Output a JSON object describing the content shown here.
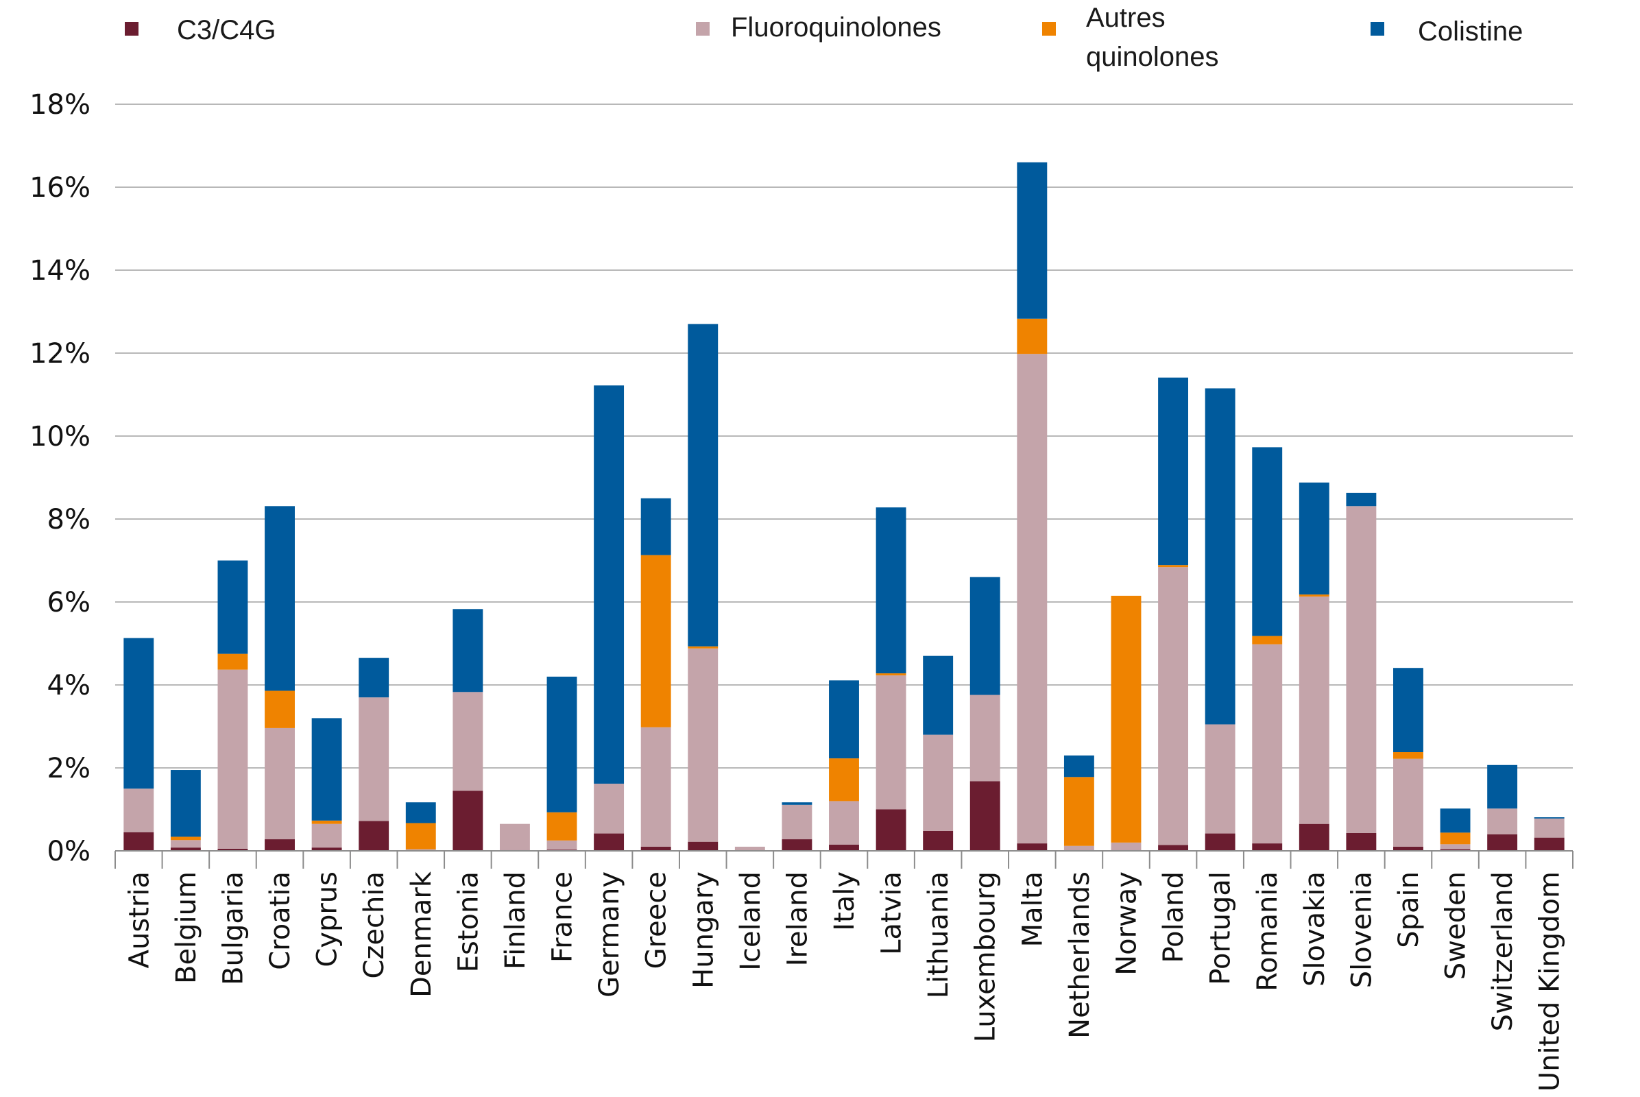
{
  "chart_data": {
    "type": "bar",
    "stacked": true,
    "title": "",
    "xlabel": "",
    "ylabel": "",
    "ylim": [
      0,
      18
    ],
    "y_ticks": [
      "0%",
      "2%",
      "4%",
      "6%",
      "8%",
      "10%",
      "12%",
      "14%",
      "16%",
      "18%"
    ],
    "grid": "horizontal",
    "legend_position": "top",
    "categories": [
      "Austria",
      "Belgium",
      "Bulgaria",
      "Croatia",
      "Cyprus",
      "Czechia",
      "Denmark",
      "Estonia",
      "Finland",
      "France",
      "Germany",
      "Greece",
      "Hungary",
      "Iceland",
      "Ireland",
      "Italy",
      "Latvia",
      "Lithuania",
      "Luxembourg",
      "Malta",
      "Netherlands",
      "Norway",
      "Poland",
      "Portugal",
      "Romania",
      "Slovakia",
      "Slovenia",
      "Spain",
      "Sweden",
      "Switzerland",
      "United Kingdom"
    ],
    "series": [
      {
        "name": "C3/C4G",
        "color": "#6b1d30",
        "values": [
          0.45,
          0.08,
          0.05,
          0.28,
          0.08,
          0.72,
          0.02,
          1.45,
          0.02,
          0.03,
          0.42,
          0.1,
          0.22,
          0.02,
          0.28,
          0.15,
          1.0,
          0.48,
          1.68,
          0.18,
          0.02,
          0.02,
          0.14,
          0.42,
          0.18,
          0.65,
          0.43,
          0.1,
          0.04,
          0.4,
          0.32
        ]
      },
      {
        "name": "Fluoroquinolones",
        "color": "#c4a4aa",
        "values": [
          1.05,
          0.18,
          4.32,
          2.68,
          0.57,
          2.98,
          0.02,
          2.38,
          0.63,
          0.22,
          1.2,
          2.88,
          4.66,
          0.08,
          0.83,
          1.05,
          3.23,
          2.32,
          2.08,
          11.8,
          0.1,
          0.18,
          6.7,
          2.63,
          4.8,
          5.48,
          7.88,
          2.12,
          0.12,
          0.62,
          0.46
        ]
      },
      {
        "name": "Autres\nquinolones",
        "color": "#ef8300",
        "values": [
          0,
          0.08,
          0.38,
          0.9,
          0.08,
          0,
          0.63,
          0,
          0,
          0.68,
          0,
          4.15,
          0.05,
          0,
          0,
          1.03,
          0.05,
          0,
          0,
          0.85,
          1.66,
          5.95,
          0.05,
          0,
          0.2,
          0.05,
          0,
          0.16,
          0.28,
          0,
          0
        ]
      },
      {
        "name": "Colistine",
        "color": "#005a9c",
        "values": [
          3.63,
          1.61,
          2.25,
          4.45,
          2.47,
          0.95,
          0.5,
          2.0,
          0,
          3.27,
          9.6,
          1.37,
          7.77,
          0,
          0.06,
          1.88,
          4.0,
          1.9,
          2.84,
          3.77,
          0.52,
          0,
          4.52,
          8.1,
          4.55,
          2.7,
          0.32,
          2.03,
          0.58,
          1.05,
          0.03
        ]
      }
    ]
  }
}
